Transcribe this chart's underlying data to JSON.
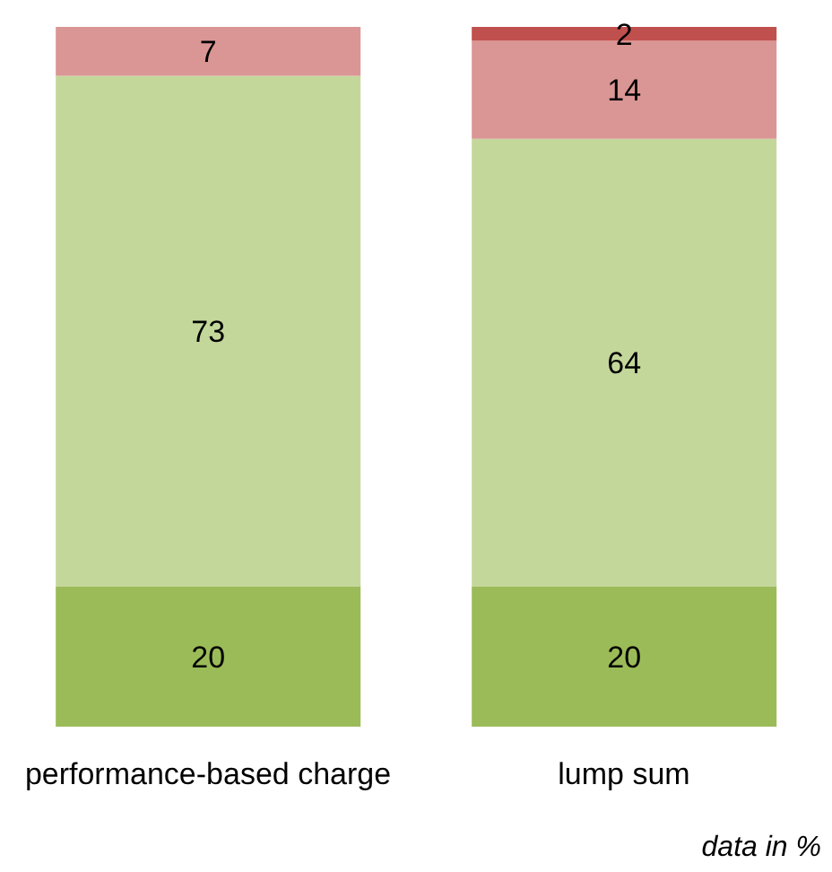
{
  "chart_data": {
    "type": "bar",
    "stacked": true,
    "data_labels": true,
    "categories": [
      "performance-based charge",
      "lump sum"
    ],
    "series": [
      {
        "color": "#9bbb59",
        "values": [
          20,
          20
        ]
      },
      {
        "color": "#c4d79b",
        "values": [
          73,
          64
        ]
      },
      {
        "color": "#da9694",
        "values": [
          7,
          14
        ]
      },
      {
        "color": "#c0504d",
        "values": [
          null,
          2
        ]
      }
    ],
    "annotations": [
      "data in %"
    ]
  }
}
